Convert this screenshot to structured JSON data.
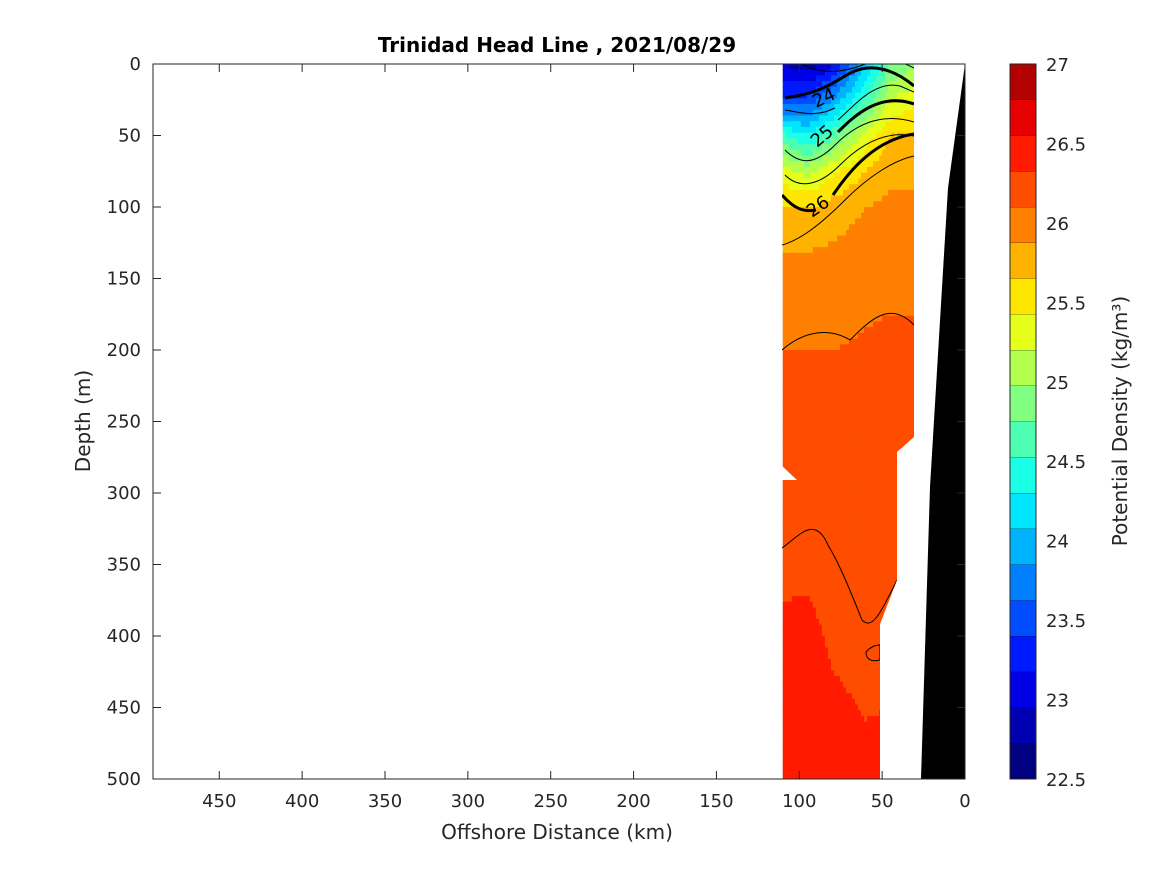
{
  "chart_data": {
    "type": "contour",
    "title": "Trinidad Head Line , 2021/08/29",
    "xlabel": "Offshore Distance (km)",
    "ylabel": "Depth (m)",
    "colorbar_label": "Potential Density (kg/m³)",
    "xlim": [
      490,
      0
    ],
    "ylim": [
      0,
      500
    ],
    "x_reversed": true,
    "y_reversed": true,
    "xticks": [
      "450",
      "400",
      "350",
      "300",
      "250",
      "200",
      "150",
      "100",
      "50",
      "0"
    ],
    "yticks": [
      "0",
      "50",
      "100",
      "150",
      "200",
      "250",
      "300",
      "350",
      "400",
      "450",
      "500"
    ],
    "colorbar": {
      "range": [
        22.5,
        27
      ],
      "step": 0.25,
      "tick_labels": [
        "27",
        "26.5",
        "26",
        "25.5",
        "25",
        "24.5",
        "24",
        "23.5",
        "23",
        "22.5"
      ],
      "colors": [
        "#000080",
        "#0000b3",
        "#0000e6",
        "#001aff",
        "#004dff",
        "#0080ff",
        "#00b3ff",
        "#00e6ff",
        "#1affe6",
        "#4dffb3",
        "#80ff80",
        "#b3ff4d",
        "#e6ff1a",
        "#ffe600",
        "#ffb300",
        "#ff8000",
        "#ff4d00",
        "#ff1a00",
        "#e60000",
        "#b30000"
      ]
    },
    "contour_labels": [
      "24",
      "25",
      "26"
    ],
    "sections": {
      "x_km": [
        110,
        95,
        80,
        60,
        45,
        30
      ],
      "depth_m": [
        0,
        25,
        50,
        75,
        100,
        150,
        200,
        300,
        400,
        500
      ],
      "density": [
        [
          23.0,
          22.8,
          23.2,
          24.2,
          25.0,
          25.2
        ],
        [
          23.5,
          23.6,
          24.0,
          24.8,
          25.5,
          25.7
        ],
        [
          24.8,
          24.5,
          24.9,
          25.6,
          26.0,
          26.0
        ],
        [
          25.6,
          25.4,
          25.7,
          26.0,
          26.2,
          26.2
        ],
        [
          26.0,
          26.0,
          26.1,
          26.25,
          26.3,
          26.3
        ],
        [
          26.4,
          26.4,
          26.4,
          26.45,
          26.45,
          26.45
        ],
        [
          26.5,
          26.5,
          26.5,
          26.52,
          26.55,
          26.55
        ],
        [
          26.6,
          26.62,
          26.64,
          26.64,
          26.65,
          26.65
        ],
        [
          26.8,
          26.8,
          26.72,
          26.68,
          26.7,
          26.7
        ],
        [
          26.9,
          26.9,
          26.85,
          26.8,
          26.8,
          26.8
        ]
      ]
    },
    "bathymetry_depth_m": [
      0,
      90,
      300,
      500
    ],
    "bathymetry_distance_km": [
      0,
      10,
      20,
      25
    ]
  }
}
